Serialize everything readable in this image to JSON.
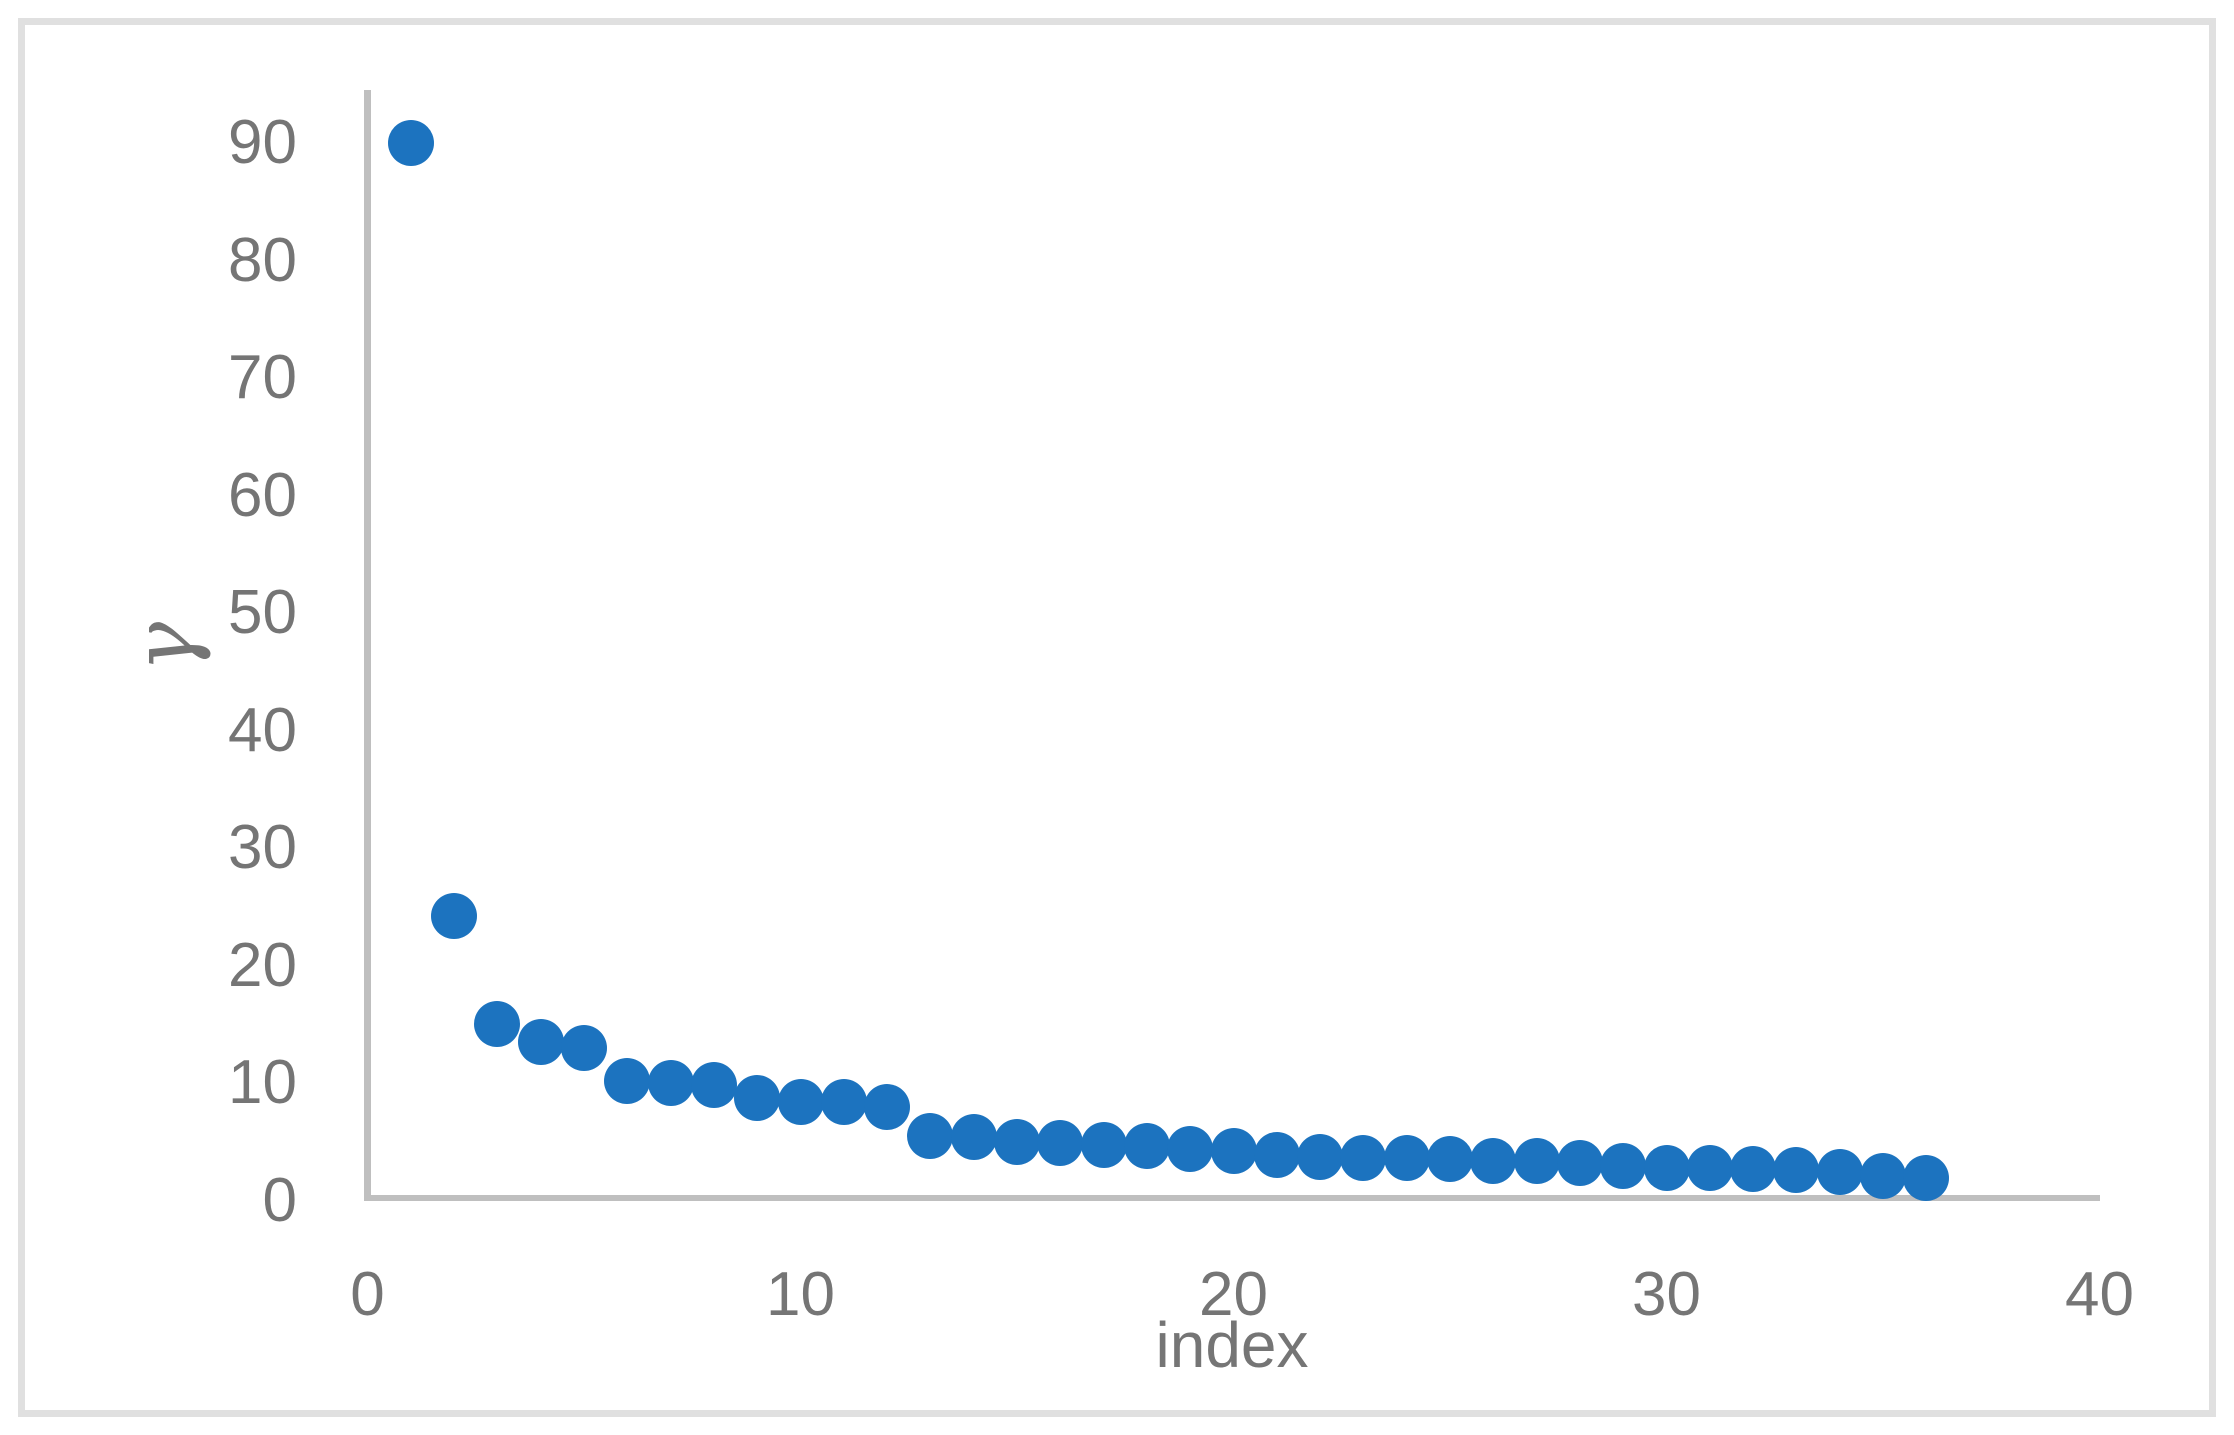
{
  "chart_data": {
    "type": "scatter",
    "title": "",
    "xlabel": "index",
    "ylabel": "γ",
    "x": [
      1,
      2,
      3,
      4,
      5,
      6,
      7,
      8,
      9,
      10,
      11,
      12,
      13,
      14,
      15,
      16,
      17,
      18,
      19,
      20,
      21,
      22,
      23,
      24,
      25,
      26,
      27,
      28,
      29,
      30,
      31,
      32,
      33,
      34,
      35,
      36
    ],
    "y": [
      90,
      24.2,
      15,
      13.5,
      13,
      10.2,
      10,
      9.8,
      8.7,
      8.4,
      8.4,
      8,
      5.5,
      5.4,
      5,
      4.9,
      4.7,
      4.6,
      4.4,
      4.2,
      3.9,
      3.7,
      3.6,
      3.6,
      3.5,
      3.4,
      3.4,
      3.2,
      2.9,
      2.8,
      2.8,
      2.7,
      2.6,
      2.4,
      2.1,
      1.9
    ],
    "x_ticks": [
      0,
      10,
      20,
      30,
      40
    ],
    "y_ticks": [
      0,
      10,
      20,
      30,
      40,
      50,
      60,
      70,
      80,
      90
    ],
    "xlim": [
      0,
      40
    ],
    "ylim": [
      0,
      94
    ],
    "grid": false,
    "legend": false,
    "marker_color": "#1c73bf",
    "axis_line_color": "#bfbfbf",
    "tick_label_color": "#757575",
    "frame_color": "#e0e0e0",
    "background": "#ffffff"
  }
}
